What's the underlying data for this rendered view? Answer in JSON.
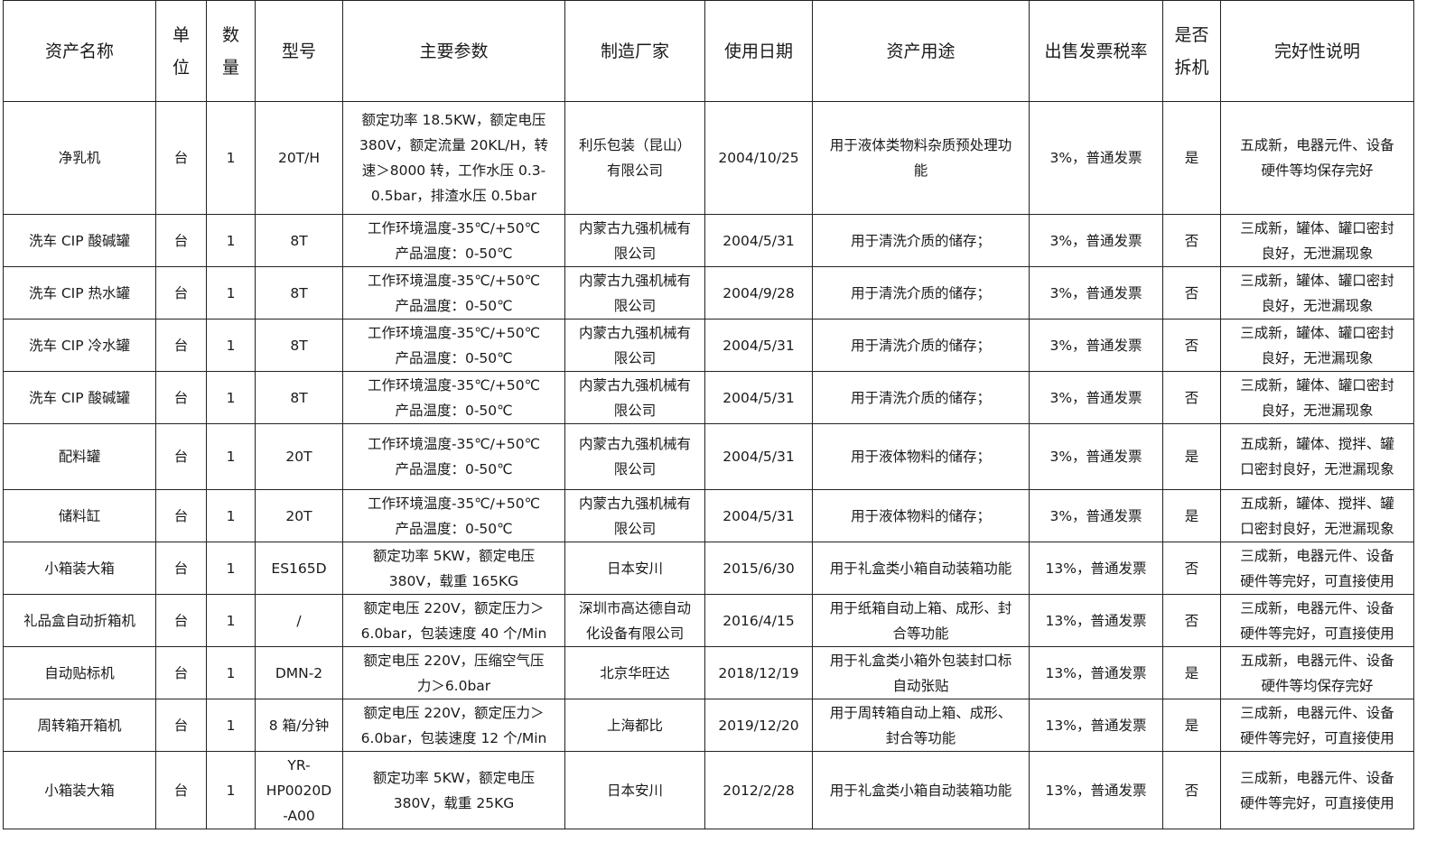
{
  "headers": [
    "资产名称",
    "单\n位",
    "数\n量",
    "型号",
    "主要参数",
    "制造厂家",
    "使用日期",
    "资产用途",
    "出售发票税率",
    "是否\n拆机",
    "完好性说明"
  ],
  "rows": [
    [
      "净乳机",
      "台",
      "1",
      "20T/H",
      "额定功率 18.5KW，额定电压\n380V，额定流量 20KL/H，转\n速＞8000 转，工作水压 0.3-\n0.5bar，排渣水压 0.5bar",
      "利乐包装（昆山）\n有限公司",
      "2004/10/25",
      "用于液体类物料杂质预处理功\n能",
      "3%，普通发票",
      "是",
      "五成新，电器元件、设备\n硬件等均保存完好"
    ],
    [
      "洗车 CIP 酸碱罐",
      "台",
      "1",
      "8T",
      "工作环境温度-35℃/+50℃\n产品温度：0-50℃",
      "内蒙古九强机械有\n限公司",
      "2004/5/31",
      "用于清洗介质的储存；",
      "3%，普通发票",
      "否",
      "三成新，罐体、罐口密封\n良好，无泄漏现象"
    ],
    [
      "洗车 CIP 热水罐",
      "台",
      "1",
      "8T",
      "工作环境温度-35℃/+50℃\n产品温度：0-50℃",
      "内蒙古九强机械有\n限公司",
      "2004/9/28",
      "用于清洗介质的储存；",
      "3%，普通发票",
      "否",
      "三成新，罐体、罐口密封\n良好，无泄漏现象"
    ],
    [
      "洗车 CIP 冷水罐",
      "台",
      "1",
      "8T",
      "工作环境温度-35℃/+50℃\n产品温度：0-50℃",
      "内蒙古九强机械有\n限公司",
      "2004/5/31",
      "用于清洗介质的储存；",
      "3%，普通发票",
      "否",
      "三成新，罐体、罐口密封\n良好，无泄漏现象"
    ],
    [
      "洗车 CIP 酸碱罐",
      "台",
      "1",
      "8T",
      "工作环境温度-35℃/+50℃\n产品温度：0-50℃",
      "内蒙古九强机械有\n限公司",
      "2004/5/31",
      "用于清洗介质的储存；",
      "3%，普通发票",
      "否",
      "三成新，罐体、罐口密封\n良好，无泄漏现象"
    ],
    [
      "配料罐",
      "台",
      "1",
      "20T",
      "工作环境温度-35℃/+50℃\n产品温度：0-50℃",
      "内蒙古九强机械有\n限公司",
      "2004/5/31",
      "用于液体物料的储存；",
      "3%，普通发票",
      "是",
      "五成新，罐体、搅拌、罐\n口密封良好，无泄漏现象"
    ],
    [
      "储料缸",
      "台",
      "1",
      "20T",
      "工作环境温度-35℃/+50℃\n产品温度：0-50℃",
      "内蒙古九强机械有\n限公司",
      "2004/5/31",
      "用于液体物料的储存；",
      "3%，普通发票",
      "是",
      "五成新，罐体、搅拌、罐\n口密封良好，无泄漏现象"
    ],
    [
      "小箱装大箱",
      "台",
      "1",
      "ES165D",
      "额定功率 5KW，额定电压\n380V，载重 165KG",
      "日本安川",
      "2015/6/30",
      "用于礼盒类小箱自动装箱功能",
      "13%，普通发票",
      "否",
      "三成新，电器元件、设备\n硬件等完好，可直接使用"
    ],
    [
      "礼品盒自动折箱机",
      "台",
      "1",
      "/",
      "额定电压 220V，额定压力＞\n6.0bar，包装速度 40 个/Min",
      "深圳市高达德自动\n化设备有限公司",
      "2016/4/15",
      "用于纸箱自动上箱、成形、封\n合等功能",
      "13%，普通发票",
      "否",
      "三成新，电器元件、设备\n硬件等完好，可直接使用"
    ],
    [
      "自动贴标机",
      "台",
      "1",
      "DMN-2",
      "额定电压 220V，压缩空气压\n力＞6.0bar",
      "北京华旺达",
      "2018/12/19",
      "用于礼盒类小箱外包装封口标\n自动张贴",
      "13%，普通发票",
      "是",
      "五成新，电器元件、设备\n硬件等均保存完好"
    ],
    [
      "周转箱开箱机",
      "台",
      "1",
      "8 箱/分钟",
      "额定电压 220V，额定压力＞\n6.0bar，包装速度 12 个/Min",
      "上海都比",
      "2019/12/20",
      "用于周转箱自动上箱、成形、\n封合等功能",
      "13%，普通发票",
      "是",
      "三成新，电器元件、设备\n硬件等完好，可直接使用"
    ],
    [
      "小箱装大箱",
      "台",
      "1",
      "YR-\nHP0020D\n-A00",
      "额定功率 5KW，额定电压\n380V，载重 25KG",
      "日本安川",
      "2012/2/28",
      "用于礼盒类小箱自动装箱功能",
      "13%，普通发票",
      "否",
      "三成新，电器元件、设备\n硬件等完好，可直接使用"
    ]
  ]
}
